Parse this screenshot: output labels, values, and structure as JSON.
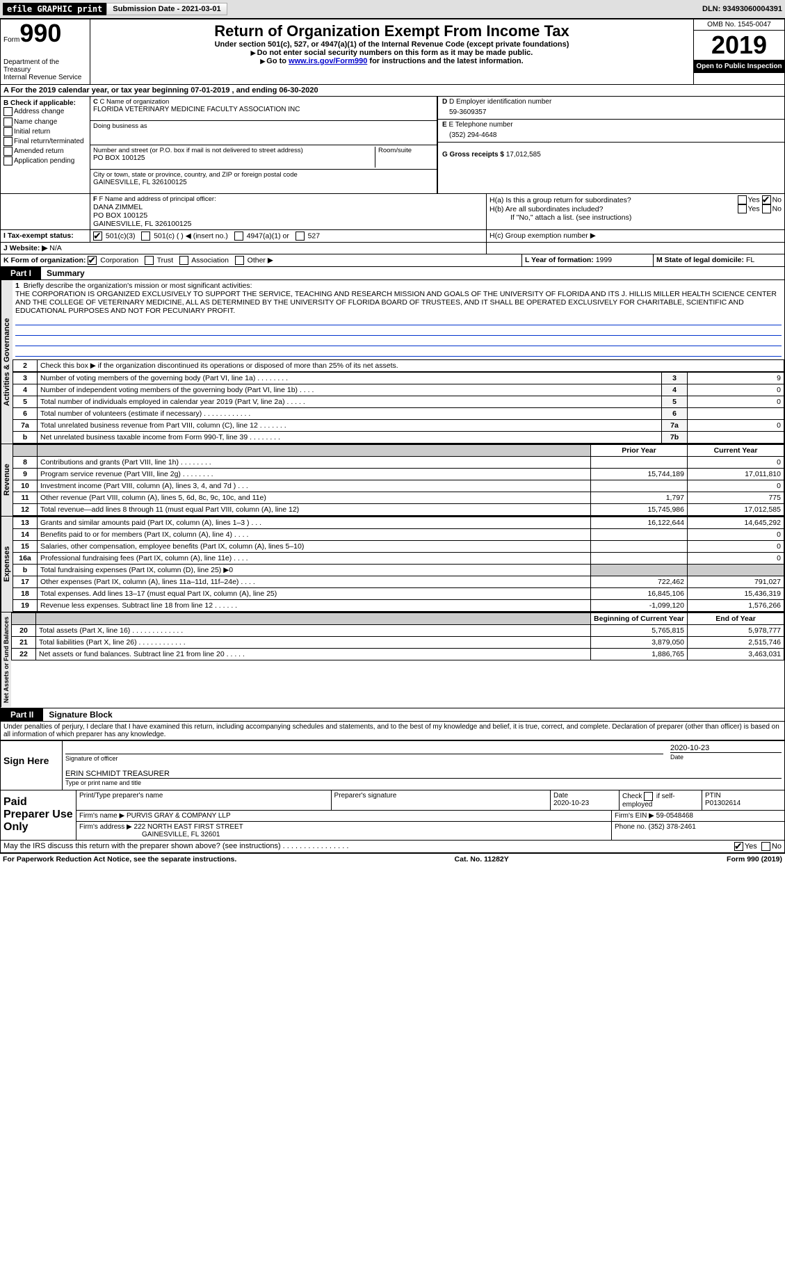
{
  "top": {
    "efile": "efile GRAPHIC print",
    "submission_label": "Submission Date - 2021-03-01",
    "dln_label": "DLN: 93493060004391"
  },
  "header": {
    "form_word": "Form",
    "form_num": "990",
    "dept": "Department of the Treasury\nInternal Revenue Service",
    "title": "Return of Organization Exempt From Income Tax",
    "subtitle": "Under section 501(c), 527, or 4947(a)(1) of the Internal Revenue Code (except private foundations)",
    "note1": "Do not enter social security numbers on this form as it may be made public.",
    "note2_pre": "Go to ",
    "note2_link": "www.irs.gov/Form990",
    "note2_post": " for instructions and the latest information.",
    "omb": "OMB No. 1545-0047",
    "year": "2019",
    "open": "Open to Public Inspection"
  },
  "rowA": "A For the 2019 calendar year, or tax year beginning 07-01-2019    , and ending 06-30-2020",
  "boxB": {
    "header": "B Check if applicable:",
    "items": [
      "Address change",
      "Name change",
      "Initial return",
      "Final return/terminated",
      "Amended return",
      "Application pending"
    ]
  },
  "boxC": {
    "label": "C Name of organization",
    "name": "FLORIDA VETERINARY MEDICINE FACULTY ASSOCIATION INC",
    "dba_label": "Doing business as",
    "addr_label": "Number and street (or P.O. box if mail is not delivered to street address)",
    "addr": "PO BOX 100125",
    "room_label": "Room/suite",
    "city_label": "City or town, state or province, country, and ZIP or foreign postal code",
    "city": "GAINESVILLE, FL  326100125"
  },
  "boxD": {
    "label": "D Employer identification number",
    "val": "59-3609357"
  },
  "boxE": {
    "label": "E Telephone number",
    "val": "(352) 294-4648"
  },
  "boxG": {
    "label": "G Gross receipts $ ",
    "val": "17,012,585"
  },
  "boxF": {
    "label": "F Name and address of principal officer:",
    "name": "DANA ZIMMEL",
    "addr1": "PO BOX 100125",
    "addr2": "GAINESVILLE, FL  326100125"
  },
  "boxH": {
    "a": "H(a)  Is this a group return for subordinates?",
    "b": "H(b)  Are all subordinates included?",
    "note": "If \"No,\" attach a list. (see instructions)",
    "c": "H(c)  Group exemption number ▶"
  },
  "taxStatus": {
    "label": "I   Tax-exempt status:",
    "opts": [
      "501(c)(3)",
      "501(c) (  ) ◀ (insert no.)",
      "4947(a)(1) or",
      "527"
    ]
  },
  "website": {
    "label": "J  Website: ▶",
    "val": " N/A"
  },
  "boxK": {
    "label": "K Form of organization:",
    "opts": [
      "Corporation",
      "Trust",
      "Association",
      "Other ▶"
    ]
  },
  "boxL": {
    "label": "L Year of formation: ",
    "val": "1999"
  },
  "boxM": {
    "label": "M State of legal domicile: ",
    "val": "FL"
  },
  "part1": {
    "tab": "Part I",
    "title": "Summary"
  },
  "mission": {
    "num": "1",
    "label": "Briefly describe the organization's mission or most significant activities:",
    "text": "THE CORPORATION IS ORGANIZED EXCLUSIVELY TO SUPPORT THE SERVICE, TEACHING AND RESEARCH MISSION AND GOALS OF THE UNIVERSITY OF FLORIDA AND ITS J. HILLIS MILLER HEALTH SCIENCE CENTER AND THE COLLEGE OF VETERINARY MEDICINE, ALL AS DETERMINED BY THE UNIVERSITY OF FLORIDA BOARD OF TRUSTEES, AND IT SHALL BE OPERATED EXCLUSIVELY FOR CHARITABLE, SCIENTIFIC AND EDUCATIONAL PURPOSES AND NOT FOR PECUNIARY PROFIT."
  },
  "line2": "Check this box ▶     if the organization discontinued its operations or disposed of more than 25% of its net assets.",
  "govRows": [
    {
      "n": "3",
      "t": "Number of voting members of the governing body (Part VI, line 1a)  .   .   .   .   .   .   .   .",
      "l": "3",
      "v": "9"
    },
    {
      "n": "4",
      "t": "Number of independent voting members of the governing body (Part VI, line 1b)  .   .   .   .",
      "l": "4",
      "v": "0"
    },
    {
      "n": "5",
      "t": "Total number of individuals employed in calendar year 2019 (Part V, line 2a)  .   .   .   .   .",
      "l": "5",
      "v": "0"
    },
    {
      "n": "6",
      "t": "Total number of volunteers (estimate if necessary)   .   .   .   .   .   .   .   .   .   .   .   .",
      "l": "6",
      "v": ""
    },
    {
      "n": "7a",
      "t": "Total unrelated business revenue from Part VIII, column (C), line 12   .   .   .   .   .   .   .",
      "l": "7a",
      "v": "0"
    },
    {
      "n": "b",
      "t": "Net unrelated business taxable income from Form 990-T, line 39   .   .   .   .   .   .   .   .",
      "l": "7b",
      "v": ""
    }
  ],
  "revHeader": {
    "prior": "Prior Year",
    "curr": "Current Year"
  },
  "revRows": [
    {
      "n": "8",
      "t": "Contributions and grants (Part VIII, line 1h)   .   .   .   .   .   .   .   .",
      "p": "",
      "c": "0"
    },
    {
      "n": "9",
      "t": "Program service revenue (Part VIII, line 2g)   .   .   .   .   .   .   .   .",
      "p": "15,744,189",
      "c": "17,011,810"
    },
    {
      "n": "10",
      "t": "Investment income (Part VIII, column (A), lines 3, 4, and 7d )   .   .   .",
      "p": "",
      "c": "0"
    },
    {
      "n": "11",
      "t": "Other revenue (Part VIII, column (A), lines 5, 6d, 8c, 9c, 10c, and 11e)",
      "p": "1,797",
      "c": "775"
    },
    {
      "n": "12",
      "t": "Total revenue—add lines 8 through 11 (must equal Part VIII, column (A), line 12)",
      "p": "15,745,986",
      "c": "17,012,585"
    }
  ],
  "expRows": [
    {
      "n": "13",
      "t": "Grants and similar amounts paid (Part IX, column (A), lines 1–3 )   .   .   .",
      "p": "16,122,644",
      "c": "14,645,292"
    },
    {
      "n": "14",
      "t": "Benefits paid to or for members (Part IX, column (A), line 4)   .   .   .   .",
      "p": "",
      "c": "0"
    },
    {
      "n": "15",
      "t": "Salaries, other compensation, employee benefits (Part IX, column (A), lines 5–10)",
      "p": "",
      "c": "0"
    },
    {
      "n": "16a",
      "t": "Professional fundraising fees (Part IX, column (A), line 11e)   .   .   .   .",
      "p": "",
      "c": "0"
    },
    {
      "n": "b",
      "t": "Total fundraising expenses (Part IX, column (D), line 25) ▶0",
      "p": "_gray_",
      "c": "_gray_"
    },
    {
      "n": "17",
      "t": "Other expenses (Part IX, column (A), lines 11a–11d, 11f–24e)   .   .   .   .",
      "p": "722,462",
      "c": "791,027"
    },
    {
      "n": "18",
      "t": "Total expenses. Add lines 13–17 (must equal Part IX, column (A), line 25)",
      "p": "16,845,106",
      "c": "15,436,319"
    },
    {
      "n": "19",
      "t": "Revenue less expenses. Subtract line 18 from line 12   .   .   .   .   .   .",
      "p": "-1,099,120",
      "c": "1,576,266"
    }
  ],
  "netHeader": {
    "begin": "Beginning of Current Year",
    "end": "End of Year"
  },
  "netRows": [
    {
      "n": "20",
      "t": "Total assets (Part X, line 16)   .   .   .   .   .   .   .   .   .   .   .   .   .",
      "p": "5,765,815",
      "c": "5,978,777"
    },
    {
      "n": "21",
      "t": "Total liabilities (Part X, line 26)   .   .   .   .   .   .   .   .   .   .   .   .",
      "p": "3,879,050",
      "c": "2,515,746"
    },
    {
      "n": "22",
      "t": "Net assets or fund balances. Subtract line 21 from line 20   .   .   .   .   .",
      "p": "1,886,765",
      "c": "3,463,031"
    }
  ],
  "part2": {
    "tab": "Part II",
    "title": "Signature Block"
  },
  "perjury": "Under penalties of perjury, I declare that I have examined this return, including accompanying schedules and statements, and to the best of my knowledge and belief, it is true, correct, and complete. Declaration of preparer (other than officer) is based on all information of which preparer has any knowledge.",
  "sign": {
    "here": "Sign Here",
    "date": "2020-10-23",
    "sig_label": "Signature of officer",
    "date_label": "Date",
    "name": "ERIN SCHMIDT TREASURER",
    "name_label": "Type or print name and title"
  },
  "paid": {
    "title": "Paid Preparer Use Only",
    "h1": "Print/Type preparer's name",
    "h2": "Preparer's signature",
    "h3": "Date",
    "date": "2020-10-23",
    "h4": "Check      if self-employed",
    "h5": "PTIN",
    "ptin": "P01302614",
    "firm_label": "Firm's name   ▶",
    "firm": "PURVIS GRAY & COMPANY LLP",
    "ein_label": "Firm's EIN ▶",
    "ein": "59-0548468",
    "addr_label": "Firm's address ▶",
    "addr": "222 NORTH EAST FIRST STREET",
    "city": "GAINESVILLE, FL  32601",
    "phone_label": "Phone no.",
    "phone": "(352) 378-2461"
  },
  "discuss": "May the IRS discuss this return with the preparer shown above? (see instructions)   .   .   .   .   .   .   .   .   .   .   .   .   .   .   .   .",
  "footer": {
    "left": "For Paperwork Reduction Act Notice, see the separate instructions.",
    "mid": "Cat. No. 11282Y",
    "right": "Form 990 (2019)"
  },
  "vtabs": {
    "gov": "Activities & Governance",
    "rev": "Revenue",
    "exp": "Expenses",
    "net": "Net Assets or Fund Balances"
  },
  "yes": "Yes",
  "no": "No"
}
